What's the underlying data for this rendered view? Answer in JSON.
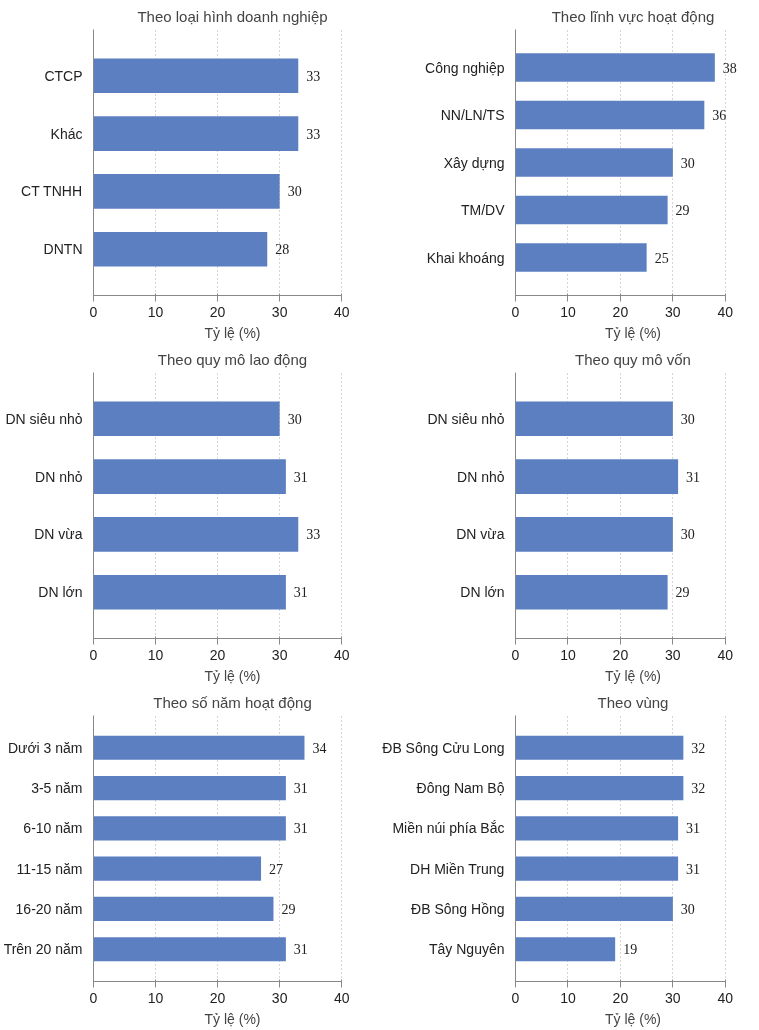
{
  "chart_data": [
    {
      "type": "bar",
      "orientation": "horizontal",
      "title": "Theo loại hình doanh nghiệp",
      "categories": [
        "CTCP",
        "Khác",
        "CT TNHH",
        "DNTN"
      ],
      "values": [
        33,
        33,
        30,
        28
      ],
      "color": "#5b7fc1",
      "xlim": [
        0,
        40
      ],
      "xticks": [
        0,
        10,
        20,
        30,
        40
      ],
      "xlabel": "Tỷ lệ (%)",
      "data_labels": true,
      "grid": "x"
    },
    {
      "type": "bar",
      "orientation": "horizontal",
      "title": "Theo lĩnh vực hoạt động",
      "categories": [
        "Công nghiệp",
        "NN/LN/TS",
        "Xây dựng",
        "TM/DV",
        "Khai khoáng"
      ],
      "values": [
        38,
        36,
        30,
        29,
        25
      ],
      "color": "#5b7fc1",
      "xlim": [
        0,
        40
      ],
      "xticks": [
        0,
        10,
        20,
        30,
        40
      ],
      "xlabel": "Tỷ lệ (%)",
      "data_labels": true,
      "grid": "x"
    },
    {
      "type": "bar",
      "orientation": "horizontal",
      "title": "Theo quy mô lao động",
      "categories": [
        "DN siêu nhỏ",
        "DN nhỏ",
        "DN vừa",
        "DN lớn"
      ],
      "values": [
        30,
        31,
        33,
        31
      ],
      "color": "#5b7fc1",
      "xlim": [
        0,
        40
      ],
      "xticks": [
        0,
        10,
        20,
        30,
        40
      ],
      "xlabel": "Tỷ lệ (%)",
      "data_labels": true,
      "grid": "x"
    },
    {
      "type": "bar",
      "orientation": "horizontal",
      "title": "Theo quy mô vốn",
      "categories": [
        "DN siêu nhỏ",
        "DN nhỏ",
        "DN vừa",
        "DN lớn"
      ],
      "values": [
        30,
        31,
        30,
        29
      ],
      "color": "#5b7fc1",
      "xlim": [
        0,
        40
      ],
      "xticks": [
        0,
        10,
        20,
        30,
        40
      ],
      "xlabel": "Tỷ lệ (%)",
      "data_labels": true,
      "grid": "x"
    },
    {
      "type": "bar",
      "orientation": "horizontal",
      "title": "Theo số năm hoạt động",
      "categories": [
        "Dưới 3 năm",
        "3-5 năm",
        "6-10 năm",
        "11-15 năm",
        "16-20 năm",
        "Trên 20 năm"
      ],
      "values": [
        34,
        31,
        31,
        27,
        29,
        31
      ],
      "color": "#5b7fc1",
      "xlim": [
        0,
        40
      ],
      "xticks": [
        0,
        10,
        20,
        30,
        40
      ],
      "xlabel": "Tỷ lệ (%)",
      "data_labels": true,
      "grid": "x"
    },
    {
      "type": "bar",
      "orientation": "horizontal",
      "title": "Theo vùng",
      "categories": [
        "ĐB Sông Cửu Long",
        "Đông Nam Bộ",
        "Miền núi phía Bắc",
        "DH Miền Trung",
        "ĐB Sông Hồng",
        "Tây Nguyên"
      ],
      "values": [
        32,
        32,
        31,
        31,
        30,
        19
      ],
      "color": "#5b7fc1",
      "xlim": [
        0,
        40
      ],
      "xticks": [
        0,
        10,
        20,
        30,
        40
      ],
      "xlabel": "Tỷ lệ (%)",
      "data_labels": true,
      "grid": "x"
    }
  ]
}
